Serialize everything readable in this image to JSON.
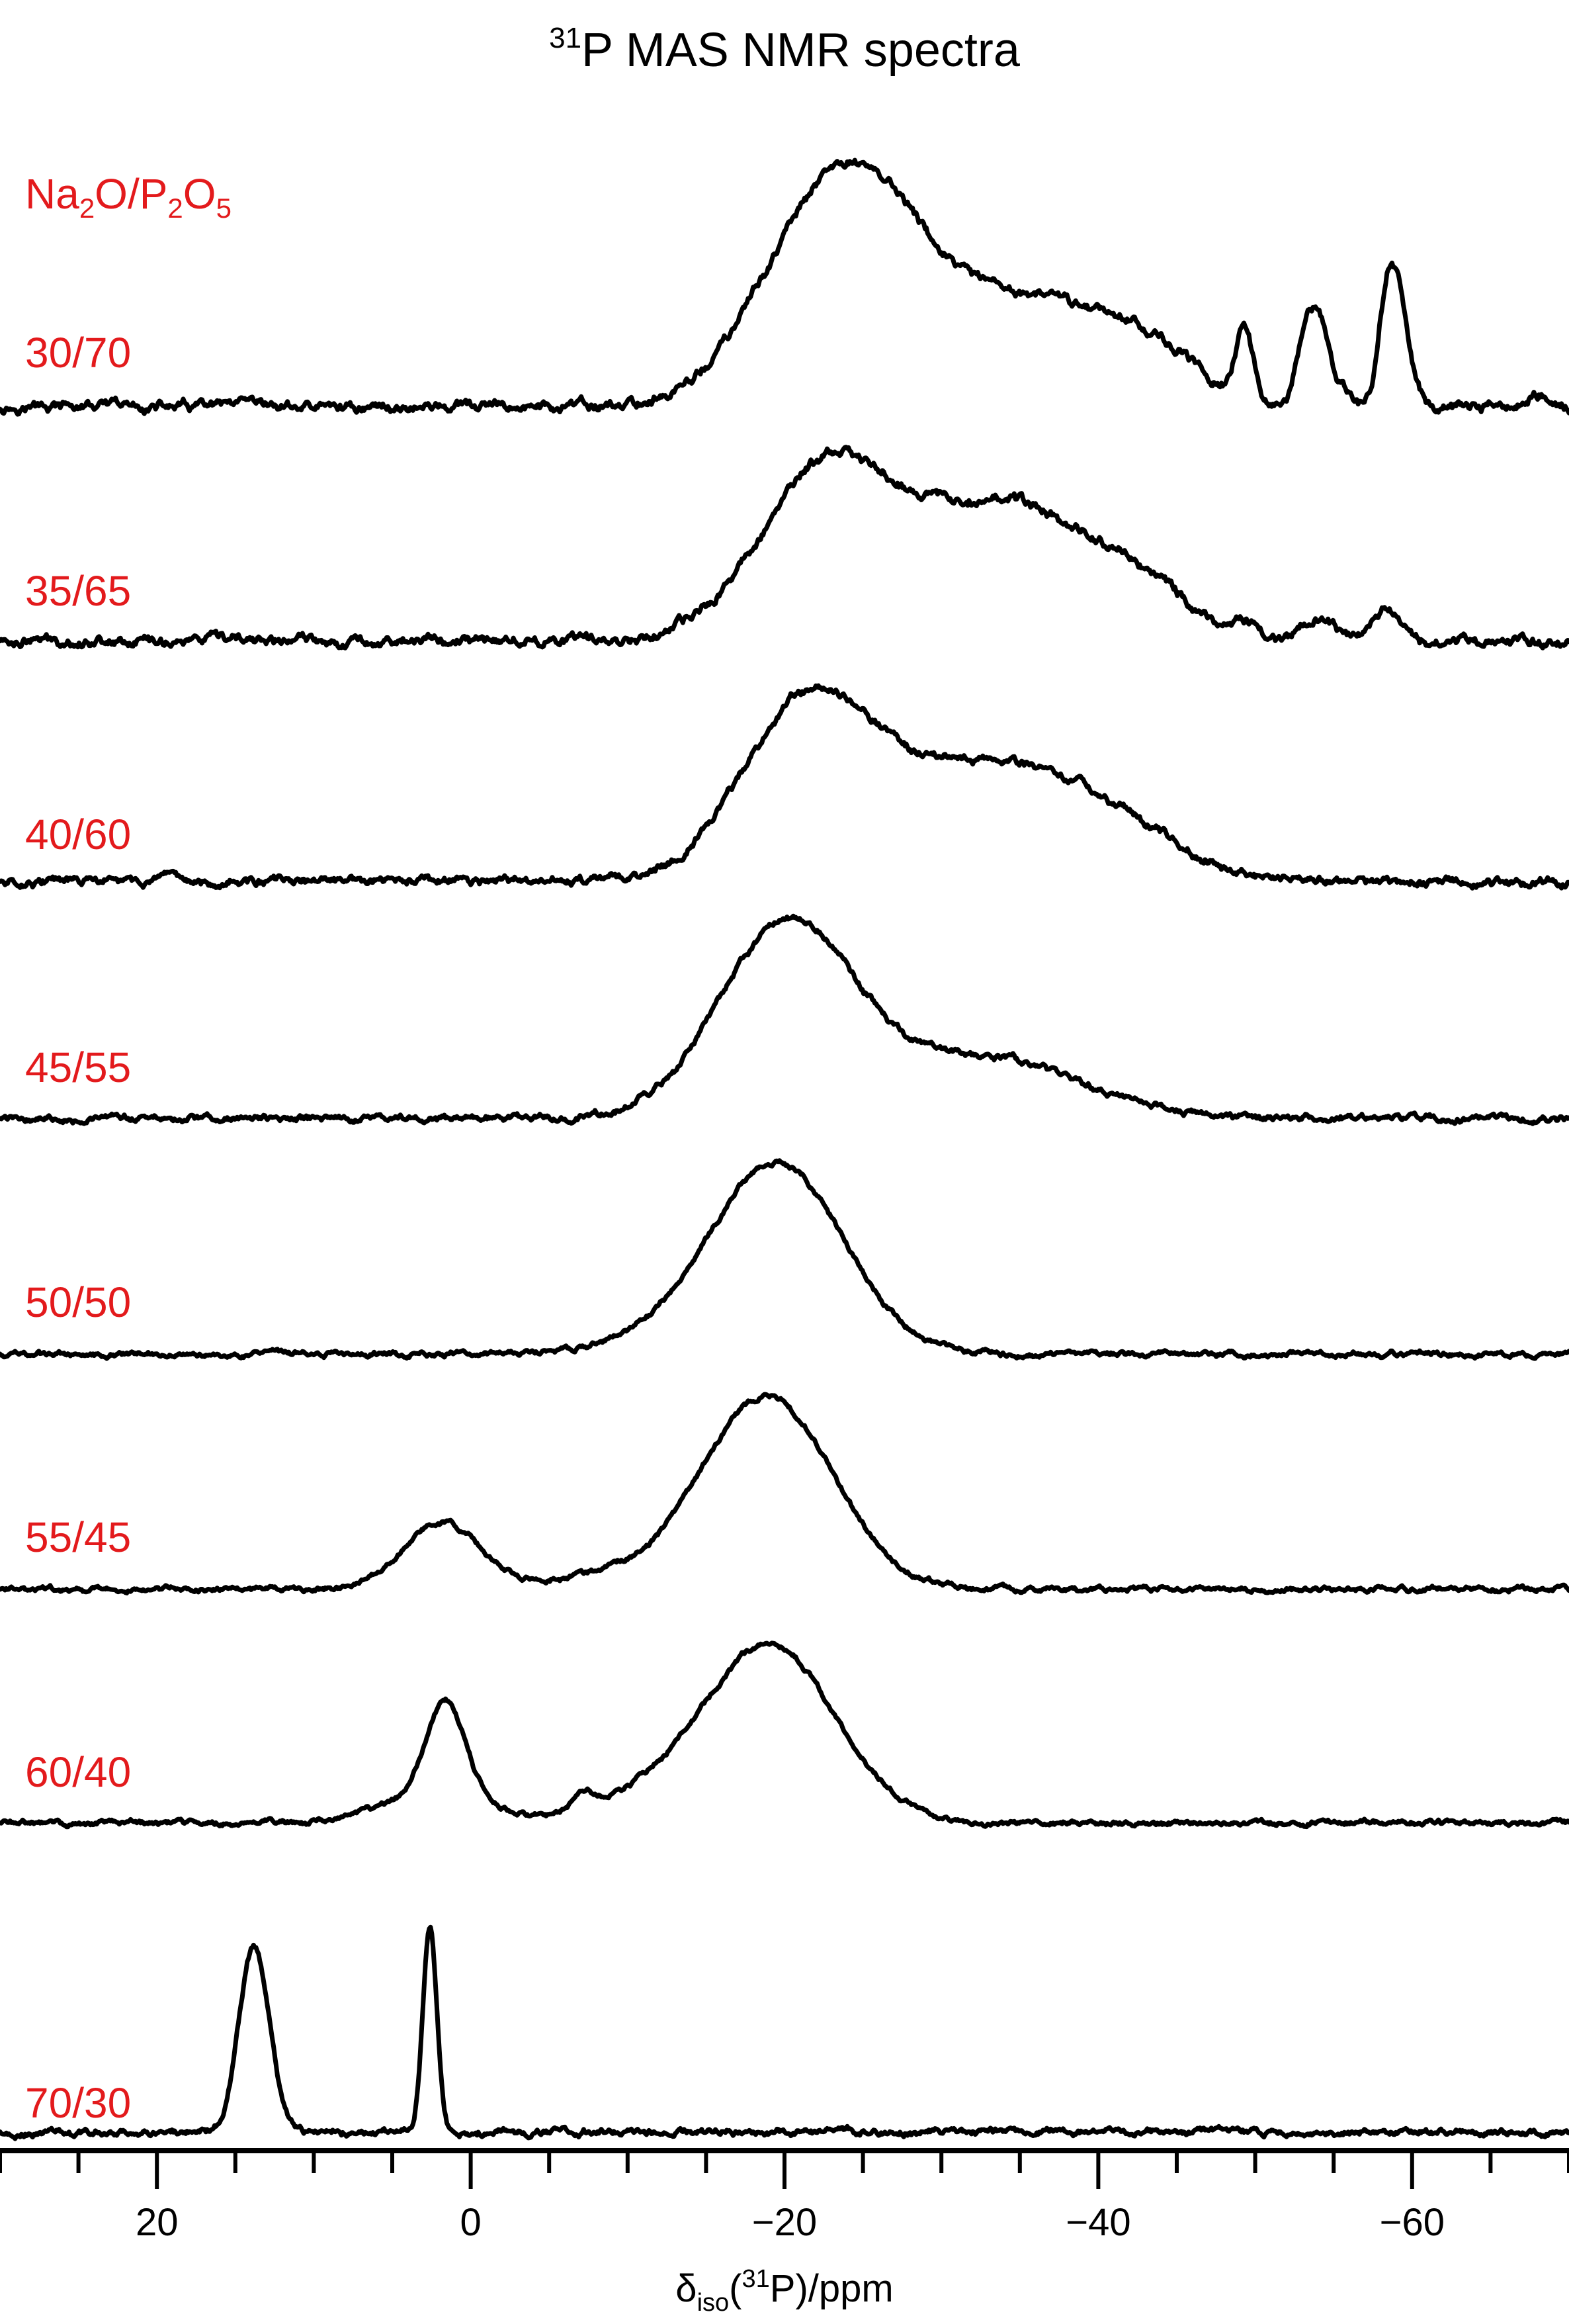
{
  "chart_data": {
    "type": "line",
    "title": {
      "main": "P MAS NMR spectra",
      "sup": "31"
    },
    "legend_title": {
      "parts": [
        {
          "text": "Na",
          "sub": false
        },
        {
          "text": "2",
          "sub": true
        },
        {
          "text": "O/P",
          "sub": false
        },
        {
          "text": "2",
          "sub": true
        },
        {
          "text": "O",
          "sub": false
        },
        {
          "text": "5",
          "sub": true
        }
      ]
    },
    "xlabel": {
      "delta": "δ",
      "sub": "iso",
      "paren_open": "(",
      "sup": "31",
      "rest": "P)/ppm"
    },
    "xlim": [
      30,
      -70
    ],
    "x_reversed": true,
    "major_ticks": [
      20,
      0,
      -20,
      -40,
      -60
    ],
    "tick_labels": [
      "20",
      "0",
      "−20",
      "−40",
      "−60"
    ],
    "minor_tick_step": 5,
    "grid": false,
    "colors": {
      "labels": "#e31a1c",
      "traces": "#000000"
    },
    "series": [
      {
        "name": "30/70",
        "noise": 0.012,
        "peaks": [
          {
            "c": -21.5,
            "h": 0.62,
            "w": 4.0
          },
          {
            "c": -26.0,
            "h": 0.48,
            "w": 3.5
          },
          {
            "c": -35.0,
            "h": 0.46,
            "w": 6.5
          },
          {
            "c": -43.0,
            "h": 0.12,
            "w": 3.0
          },
          {
            "c": -49.3,
            "h": 0.27,
            "w": 0.55
          },
          {
            "c": -53.2,
            "h": 0.27,
            "w": 0.55
          },
          {
            "c": -54.1,
            "h": 0.27,
            "w": 0.55
          },
          {
            "c": -55.2,
            "h": 0.09,
            "w": 0.8
          },
          {
            "c": -58.5,
            "h": 0.5,
            "w": 0.6
          },
          {
            "c": -59.4,
            "h": 0.28,
            "w": 0.6
          },
          {
            "c": -68.0,
            "h": 0.06,
            "w": 0.5
          }
        ]
      },
      {
        "name": "35/65",
        "noise": 0.012,
        "peaks": [
          {
            "c": -22.5,
            "h": 0.68,
            "w": 4.2
          },
          {
            "c": -34.0,
            "h": 0.58,
            "w": 6.0
          },
          {
            "c": -43.0,
            "h": 0.12,
            "w": 3.0
          },
          {
            "c": -49.3,
            "h": 0.06,
            "w": 0.6
          },
          {
            "c": -53.5,
            "h": 0.06,
            "w": 0.7
          },
          {
            "c": -54.5,
            "h": 0.06,
            "w": 0.7
          },
          {
            "c": -58.5,
            "h": 0.15,
            "w": 0.8
          }
        ]
      },
      {
        "name": "40/60",
        "noise": 0.01,
        "peaks": [
          {
            "c": -21.5,
            "h": 0.72,
            "w": 4.2
          },
          {
            "c": -33.5,
            "h": 0.5,
            "w": 6.5
          },
          {
            "c": -42.0,
            "h": 0.08,
            "w": 3.5
          }
        ]
      },
      {
        "name": "45/55",
        "noise": 0.008,
        "peaks": [
          {
            "c": -20.2,
            "h": 0.82,
            "w": 4.3
          },
          {
            "c": -33.0,
            "h": 0.25,
            "w": 6.0
          }
        ]
      },
      {
        "name": "50/50",
        "noise": 0.006,
        "peaks": [
          {
            "c": -19.5,
            "h": 0.8,
            "w": 4.2
          },
          {
            "c": -12.0,
            "h": 0.04,
            "w": 4.0
          }
        ]
      },
      {
        "name": "55/45",
        "noise": 0.006,
        "peaks": [
          {
            "c": -18.8,
            "h": 0.81,
            "w": 4.2
          },
          {
            "c": 1.8,
            "h": 0.28,
            "w": 2.5
          },
          {
            "c": -8.0,
            "h": 0.05,
            "w": 3.0
          }
        ]
      },
      {
        "name": "60/40",
        "noise": 0.006,
        "peaks": [
          {
            "c": -19.0,
            "h": 0.75,
            "w": 4.2
          },
          {
            "c": 1.6,
            "h": 0.4,
            "w": 1.2
          },
          {
            "c": 2.0,
            "h": 0.12,
            "w": 3.5
          },
          {
            "c": -7.2,
            "h": 0.08,
            "w": 0.8
          },
          {
            "c": -11.0,
            "h": 0.08,
            "w": 3.0
          }
        ]
      },
      {
        "name": "70/30",
        "noise": 0.008,
        "peaks": [
          {
            "c": 13.8,
            "h": 0.78,
            "w": 0.95
          },
          {
            "c": 2.6,
            "h": 0.87,
            "w": 0.45
          }
        ]
      }
    ]
  }
}
